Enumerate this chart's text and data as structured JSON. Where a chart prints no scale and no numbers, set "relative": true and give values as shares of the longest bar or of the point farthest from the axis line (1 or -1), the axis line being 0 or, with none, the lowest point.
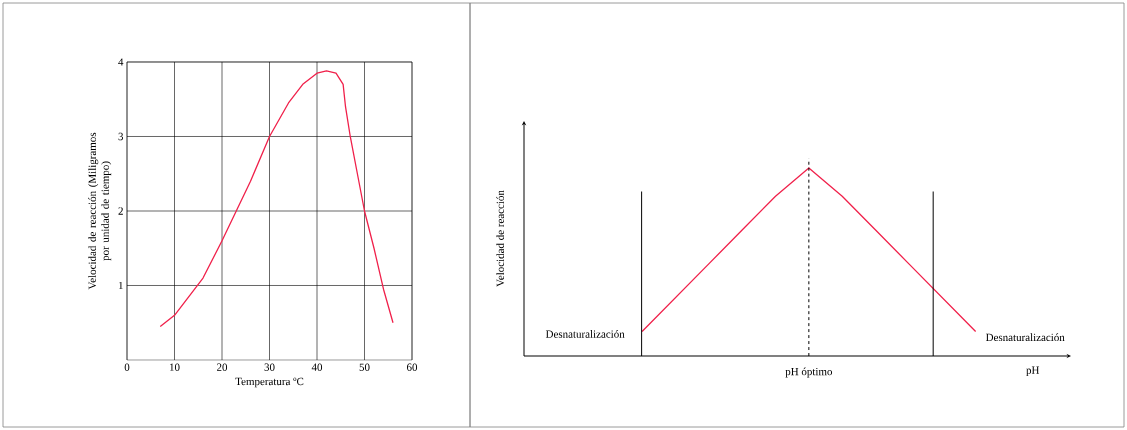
{
  "chart_data": [
    {
      "type": "line",
      "xlabel": "Temperatura ºC",
      "ylabel": "Velocidad de reacción (Miligramos por unidad de tiempo)",
      "x": [
        7,
        10,
        13,
        16,
        20,
        23,
        26,
        30,
        34,
        37,
        40,
        42,
        44,
        45.5,
        46,
        47,
        48.5,
        50,
        52,
        54,
        56
      ],
      "values": [
        0.45,
        0.6,
        0.85,
        1.1,
        1.6,
        2.0,
        2.4,
        3.0,
        3.45,
        3.7,
        3.85,
        3.88,
        3.85,
        3.7,
        3.4,
        3.0,
        2.5,
        2.0,
        1.5,
        0.95,
        0.5
      ],
      "color": "#f0204a",
      "xlim": [
        0,
        60
      ],
      "ylim": [
        0,
        4
      ],
      "xticks": [
        0,
        10,
        20,
        30,
        40,
        50,
        60
      ],
      "yticks": [
        1,
        2,
        3,
        4
      ],
      "grid": true
    },
    {
      "type": "line",
      "relative": true,
      "xlabel": "pH",
      "ylabel": "Velocidad de reacción",
      "categories": [
        null,
        null,
        null,
        null,
        null,
        null,
        null,
        null,
        null,
        null,
        null
      ],
      "values": [
        0.13,
        0.31,
        0.49,
        0.67,
        0.85,
        1.0,
        0.85,
        0.67,
        0.49,
        0.31,
        0.13
      ],
      "color": "#f0204a",
      "annotations": [
        "Desnaturalización",
        "Desnaturalización",
        "pH óptimo"
      ]
    }
  ]
}
